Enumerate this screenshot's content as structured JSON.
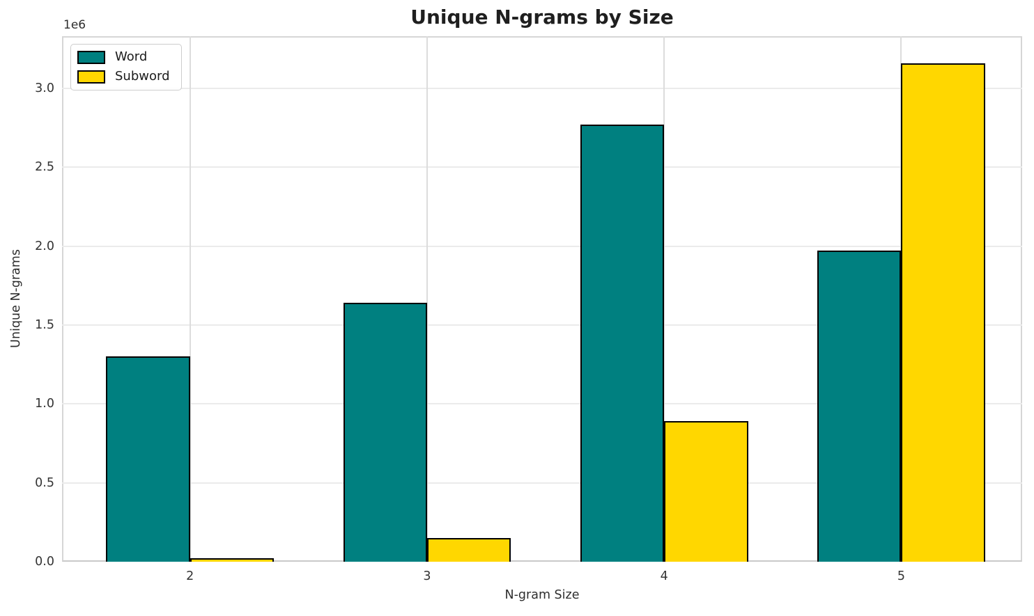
{
  "chart_data": {
    "type": "bar",
    "title": "Unique N-grams by Size",
    "xlabel": "N-gram Size",
    "ylabel": "Unique N-grams",
    "offset_text": "1e6",
    "categories": [
      "2",
      "3",
      "4",
      "5"
    ],
    "series": [
      {
        "name": "Word",
        "color": "#008080",
        "values": [
          1300000,
          1640000,
          2770000,
          1970000
        ]
      },
      {
        "name": "Subword",
        "color": "#FFD700",
        "values": [
          20000,
          150000,
          890000,
          3160000
        ]
      }
    ],
    "ylim": [
      0,
      3330000
    ],
    "yticks": [
      0,
      500000,
      1000000,
      1500000,
      2000000,
      2500000,
      3000000
    ],
    "ytick_labels": [
      "0.0",
      "0.5",
      "1.0",
      "1.5",
      "2.0",
      "2.5",
      "3.0"
    ],
    "grid": "both",
    "legend_position": "upper-left",
    "bar_edge_color": "#000000"
  }
}
